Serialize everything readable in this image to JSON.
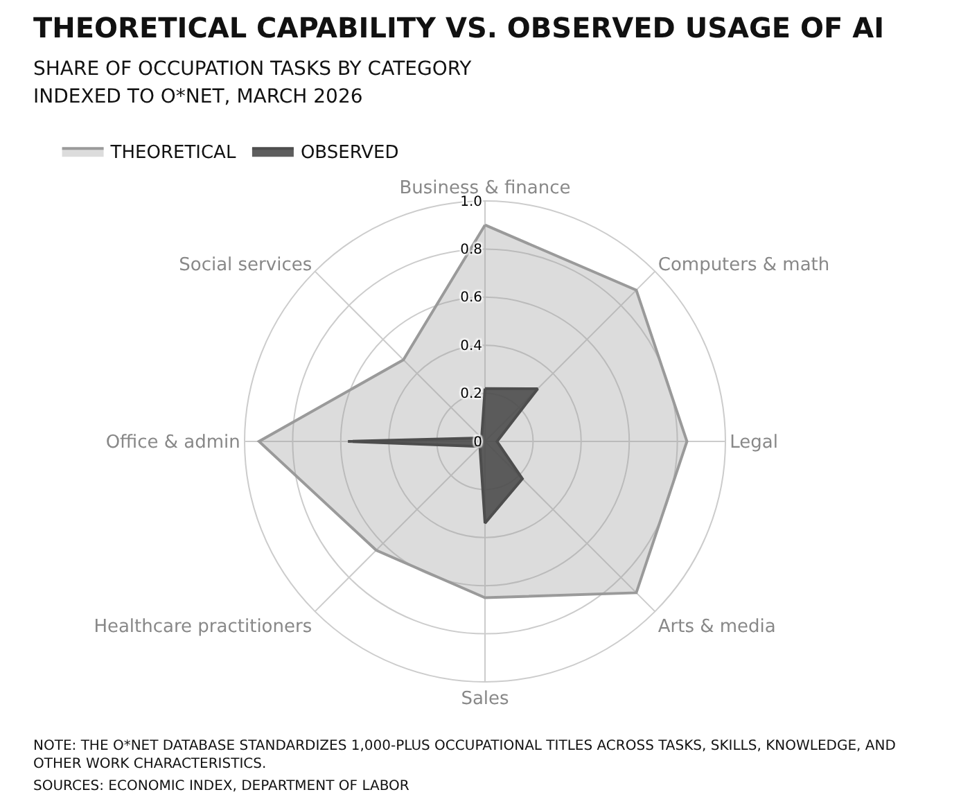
{
  "chart_data": {
    "type": "radar",
    "title": "THEORETICAL CAPABILITY VS. OBSERVED USAGE OF AI",
    "subtitle": "SHARE OF OCCUPATION TASKS BY CATEGORY\nINDEXED TO O*NET, MARCH 2026",
    "categories": [
      "Business & finance",
      "Computers & math",
      "Legal",
      "Arts & media",
      "Sales",
      "Healthcare practitioners",
      "Office & admin",
      "Social services"
    ],
    "series": [
      {
        "name": "THEORETICAL",
        "color": "#9a9a9a",
        "values": [
          0.9,
          0.89,
          0.84,
          0.89,
          0.65,
          0.64,
          0.94,
          0.48
        ]
      },
      {
        "name": "OBSERVED",
        "color": "#4d4d4d",
        "values": [
          0.22,
          0.31,
          0.05,
          0.22,
          0.34,
          0.03,
          0.57,
          0.02
        ]
      }
    ],
    "ylim": [
      0,
      1
    ],
    "yticks": [
      0,
      0.2,
      0.4,
      0.6,
      0.8,
      {
        "value": 1,
        "label": "1.0"
      }
    ],
    "grid": true,
    "legend": "top left",
    "marker": "none",
    "annotations": [
      "NOTE:  THE O*NET DATABASE STANDARDIZES 1,000-PLUS OCCUPATIONAL TITLES ACROSS TASKS, SKILLS, KNOWLEDGE, AND OTHER WORK CHARACTERISTICS.",
      "SOURCES: ECONOMIC INDEX, DEPARTMENT OF LABOR"
    ]
  }
}
